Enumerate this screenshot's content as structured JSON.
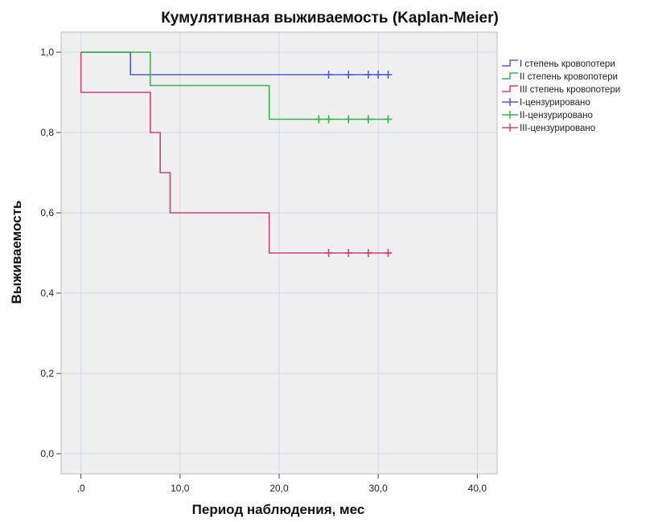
{
  "chart_data": {
    "type": "line",
    "subtype": "kaplan-meier-step",
    "title": "Кумулятивная выживаемость (Kaplan-Meier)",
    "xlabel": "Период наблюдения, мес",
    "ylabel": "Выживаемость",
    "xlim": [
      -2,
      42
    ],
    "ylim": [
      -0.05,
      1.05
    ],
    "x_ticks": [
      0,
      10,
      20,
      30,
      40
    ],
    "x_tick_labels": [
      ",0",
      "10,0",
      "20,0",
      "30,0",
      "40,0"
    ],
    "y_ticks": [
      0,
      0.2,
      0.4,
      0.6,
      0.8,
      1.0
    ],
    "y_tick_labels": [
      "0,0",
      "0,2",
      "0,4",
      "0,6",
      "0,8",
      "1,0"
    ],
    "grid": true,
    "legend_position": "right",
    "series": [
      {
        "name": "I степень кровопотери",
        "censored_name": "I-цензурировано",
        "color": "#4a5fd0",
        "steps": [
          [
            0,
            1.0
          ],
          [
            5,
            0.944
          ],
          [
            31,
            0.944
          ]
        ],
        "censored": [
          25,
          27,
          29,
          30,
          31
        ]
      },
      {
        "name": "II степень кровопотери",
        "censored_name": "II-цензурировано",
        "color": "#33b54a",
        "steps": [
          [
            0,
            1.0
          ],
          [
            7,
            0.917
          ],
          [
            19,
            0.833
          ],
          [
            31,
            0.833
          ]
        ],
        "censored": [
          24,
          25,
          27,
          29,
          31
        ]
      },
      {
        "name": "III степень кровопотери",
        "censored_name": "III-цензурировано",
        "color": "#d0407a",
        "steps": [
          [
            0,
            0.9
          ],
          [
            7,
            0.8
          ],
          [
            8,
            0.7
          ],
          [
            9,
            0.6
          ],
          [
            19,
            0.5
          ],
          [
            31,
            0.5
          ]
        ],
        "censored": [
          25,
          27,
          29,
          31
        ]
      }
    ]
  }
}
